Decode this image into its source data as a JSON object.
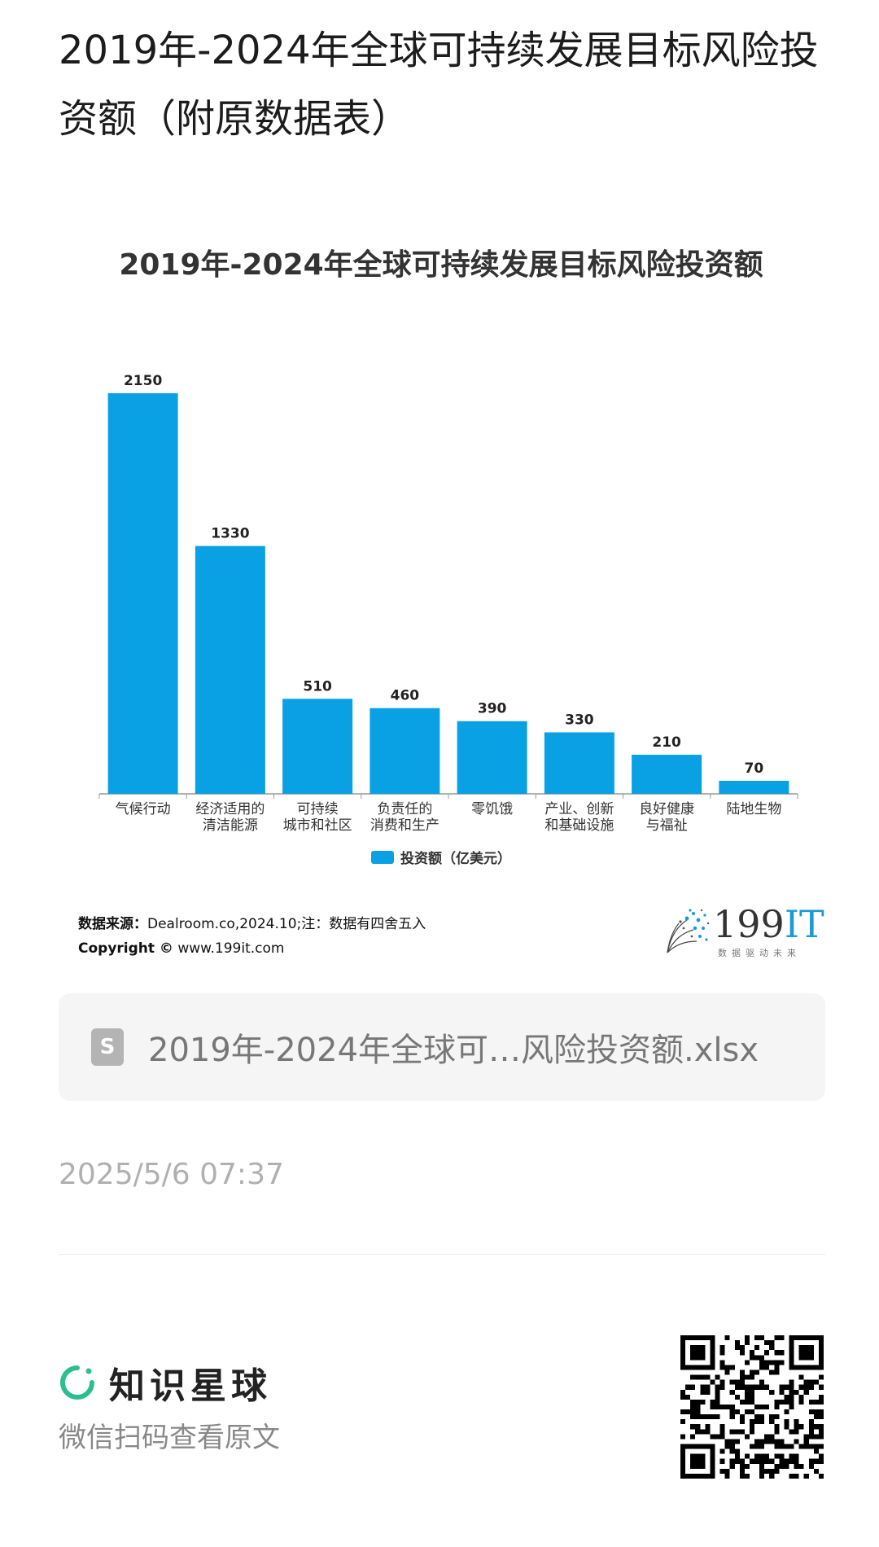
{
  "post": {
    "title": "2019年-2024年全球可持续发展目标风险投资额（附原数据表）",
    "timestamp": "2025/5/6 07:37"
  },
  "chart_data": {
    "type": "bar",
    "title": "2019年-2024年全球可持续发展目标风险投资额",
    "categories": [
      [
        "气候行动"
      ],
      [
        "经济适用的",
        "清洁能源"
      ],
      [
        "可持续",
        "城市和社区"
      ],
      [
        "负责任的",
        "消费和生产"
      ],
      [
        "零饥饿"
      ],
      [
        "产业、创新",
        "和基础设施"
      ],
      [
        "良好健康",
        "与福祉"
      ],
      [
        "陆地生物"
      ]
    ],
    "series": [
      {
        "name": "投资额（亿美元）",
        "values": [
          2150,
          1330,
          510,
          460,
          390,
          330,
          210,
          70
        ]
      }
    ],
    "ylim": [
      0,
      2250
    ],
    "grid": false,
    "legend": "bottom-center",
    "bar_color": "#0aa1e4"
  },
  "source": {
    "label": "数据来源：",
    "text": "Dealroom.co,2024.10;注：数据有四舍五入",
    "copyright_label": "Copyright ©",
    "copyright_text": "www.199it.com"
  },
  "brand": {
    "name_num": "199",
    "name_it": "IT",
    "tagline": "数据驱动未来"
  },
  "attachment": {
    "icon": "S",
    "filename": "2019年-2024年全球可…风险投资额.xlsx"
  },
  "footer": {
    "platform_name": "知识星球",
    "scan_hint": "微信扫码查看原文"
  },
  "colors": {
    "accent": "#0aa1e4",
    "planet_green": "#2bbf8f"
  }
}
